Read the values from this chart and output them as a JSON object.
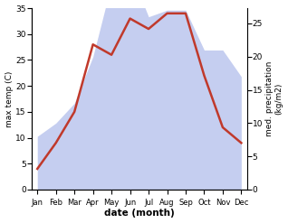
{
  "months": [
    "Jan",
    "Feb",
    "Mar",
    "Apr",
    "May",
    "Jun",
    "Jul",
    "Aug",
    "Sep",
    "Oct",
    "Nov",
    "Dec"
  ],
  "temperature": [
    4,
    9,
    15,
    28,
    26,
    33,
    31,
    34,
    34,
    22,
    12,
    9
  ],
  "precipitation": [
    8,
    10,
    13,
    20,
    31,
    33,
    26,
    27,
    27,
    21,
    21,
    17
  ],
  "temp_color": "#c0392b",
  "precip_color_fill": "#c5cef0",
  "title": "",
  "xlabel": "date (month)",
  "ylabel_left": "max temp (C)",
  "ylabel_right": "med. precipitation\n(kg/m2)",
  "ylim_left": [
    0,
    35
  ],
  "ylim_right": [
    0,
    27.3
  ],
  "yticks_left": [
    0,
    5,
    10,
    15,
    20,
    25,
    30,
    35
  ],
  "yticks_right": [
    0,
    5,
    10,
    15,
    20,
    25
  ],
  "background_color": "#ffffff",
  "temp_linewidth": 1.8
}
